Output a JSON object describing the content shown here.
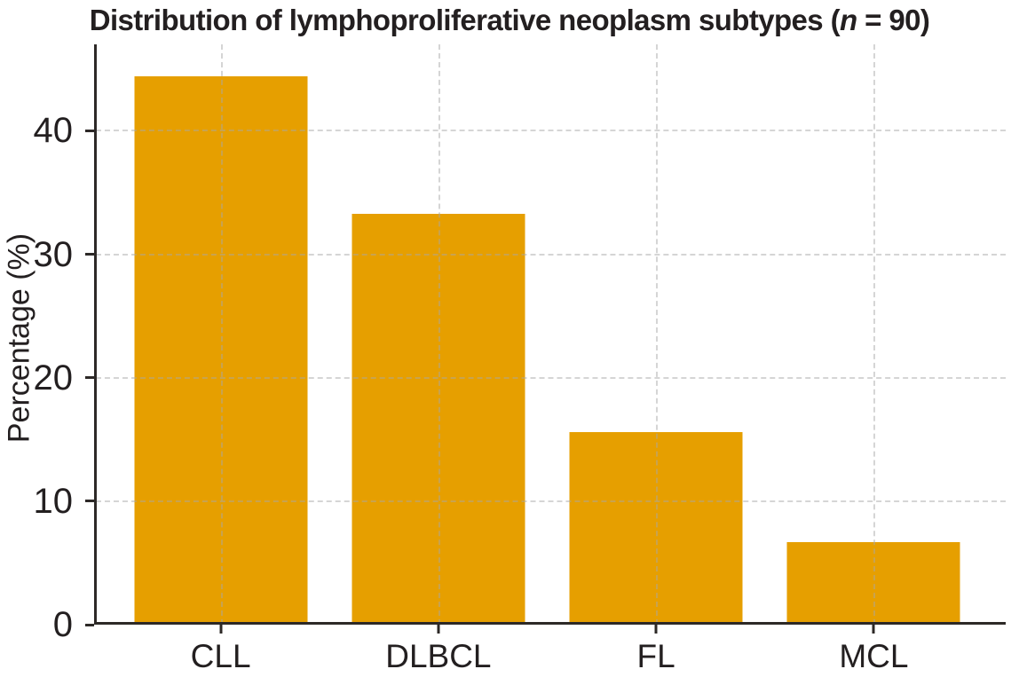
{
  "title": {
    "text_before_italic": "Distribution of lymphoproliferative neoplasm subtypes (",
    "italic_text": "n",
    "text_after_italic": " = 90)",
    "full_text": "Distribution of lymphoproliferative neoplasm subtypes (n = 90)"
  },
  "chart_data": {
    "type": "bar",
    "title": "Distribution of lymphoproliferative neoplasm subtypes (n = 90)",
    "categories": [
      "CLL",
      "DLBCL",
      "FL",
      "MCL"
    ],
    "values": [
      44.4,
      33.3,
      15.6,
      6.7
    ],
    "xlabel": "",
    "ylabel": "Percentage (%)",
    "ylim": [
      0,
      47
    ],
    "yticks": [
      0,
      10,
      20,
      30,
      40
    ],
    "grid": "dashed horizontal and vertical gridlines, drawn over bars",
    "legend": "none",
    "bar_color": "#E69F00",
    "axis_color": "#2d2927",
    "text_color": "#231F20",
    "background_color": "#ffffff"
  }
}
